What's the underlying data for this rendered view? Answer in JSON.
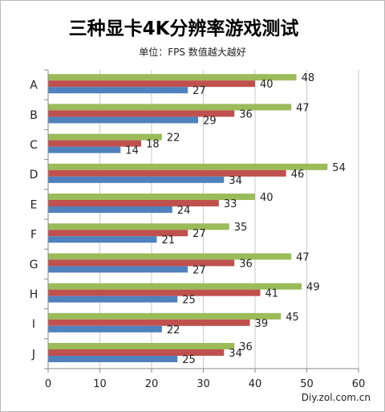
{
  "title": "三种显卡4K分辨率游戏测试",
  "subtitle": "单位：FPS  数值越大越好",
  "footer": "Diy.zol.com.cn",
  "chart_data": {
    "type": "bar",
    "orientation": "horizontal",
    "title": "三种显卡4K分辨率游戏测试",
    "subtitle": "单位：FPS  数值越大越好",
    "categories": [
      "A",
      "B",
      "C",
      "D",
      "E",
      "F",
      "G",
      "H",
      "I",
      "J"
    ],
    "series": [
      {
        "color": "#9bbb59",
        "values": [
          48,
          47,
          22,
          54,
          40,
          35,
          47,
          49,
          45,
          36
        ]
      },
      {
        "color": "#c0504d",
        "values": [
          40,
          36,
          18,
          46,
          33,
          27,
          36,
          41,
          39,
          34
        ]
      },
      {
        "color": "#4f81bd",
        "values": [
          27,
          29,
          14,
          34,
          24,
          21,
          27,
          25,
          22,
          25
        ]
      }
    ],
    "xlim": [
      0,
      60
    ],
    "xticks": [
      0,
      10,
      20,
      30,
      40,
      50,
      60
    ],
    "grid": true,
    "legend": "none",
    "data_labels": true
  }
}
